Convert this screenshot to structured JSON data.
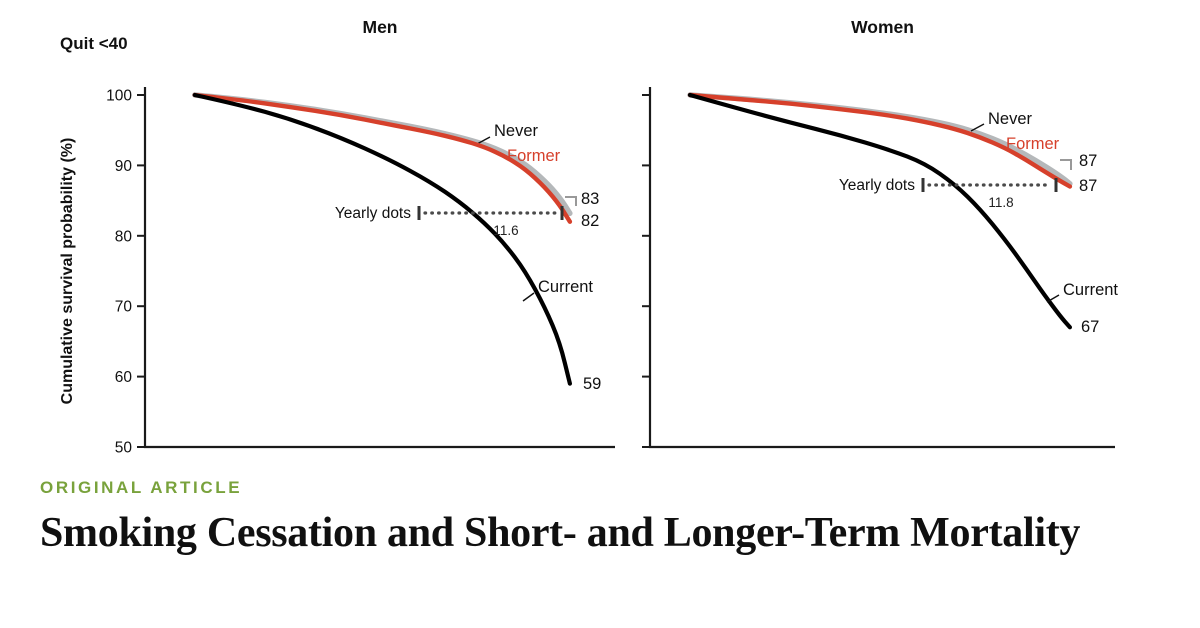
{
  "chart_header": {
    "quit_label": "Quit <40"
  },
  "chart_data": [
    {
      "type": "line",
      "title": "Men",
      "ylabel": "Cumulative survival probability (%)",
      "ylim": [
        50,
        100
      ],
      "yticks": [
        100,
        90,
        80,
        70,
        60,
        50
      ],
      "x_axis": "follow-up time (unlabeled, yearly dots)",
      "legend_position": "inline-labels",
      "series": [
        {
          "name": "Never",
          "color": "#b5b8ba",
          "end_value": 83,
          "points": [
            [
              0.106,
              100
            ],
            [
              0.202,
              99.4
            ],
            [
              0.309,
              98.5
            ],
            [
              0.415,
              97.4
            ],
            [
              0.521,
              96.1
            ],
            [
              0.606,
              95.0
            ],
            [
              0.67,
              94.0
            ],
            [
              0.723,
              93.0
            ],
            [
              0.766,
              91.8
            ],
            [
              0.809,
              90.2
            ],
            [
              0.851,
              87.8
            ],
            [
              0.883,
              85.4
            ],
            [
              0.904,
              83.2
            ]
          ]
        },
        {
          "name": "Former",
          "color": "#d6402b",
          "end_value": 82,
          "points": [
            [
              0.106,
              100
            ],
            [
              0.202,
              99.3
            ],
            [
              0.309,
              98.3
            ],
            [
              0.415,
              97.2
            ],
            [
              0.521,
              95.8
            ],
            [
              0.606,
              94.7
            ],
            [
              0.67,
              93.7
            ],
            [
              0.723,
              92.6
            ],
            [
              0.766,
              91.3
            ],
            [
              0.809,
              89.5
            ],
            [
              0.851,
              86.9
            ],
            [
              0.883,
              84.3
            ],
            [
              0.904,
              82.0
            ]
          ]
        },
        {
          "name": "Current",
          "color": "#000000",
          "end_value": 59,
          "points": [
            [
              0.106,
              100
            ],
            [
              0.202,
              98.6
            ],
            [
              0.309,
              96.6
            ],
            [
              0.415,
              94.0
            ],
            [
              0.521,
              90.8
            ],
            [
              0.606,
              87.7
            ],
            [
              0.67,
              84.8
            ],
            [
              0.723,
              81.8
            ],
            [
              0.766,
              78.8
            ],
            [
              0.809,
              75.0
            ],
            [
              0.851,
              69.8
            ],
            [
              0.883,
              64.8
            ],
            [
              0.904,
              59.0
            ]
          ]
        }
      ],
      "annotation": {
        "label": "Yearly dots",
        "gap_years": "11.6"
      }
    },
    {
      "type": "line",
      "title": "Women",
      "ylabel": "",
      "ylim": [
        50,
        100
      ],
      "yticks": [
        100,
        90,
        80,
        70,
        60,
        50
      ],
      "x_axis": "follow-up time (unlabeled, yearly dots)",
      "legend_position": "inline-labels",
      "series": [
        {
          "name": "Never",
          "color": "#b5b8ba",
          "end_value": 87,
          "points": [
            [
              0.086,
              100
            ],
            [
              0.194,
              99.5
            ],
            [
              0.301,
              98.9
            ],
            [
              0.409,
              98.2
            ],
            [
              0.516,
              97.3
            ],
            [
              0.591,
              96.5
            ],
            [
              0.656,
              95.6
            ],
            [
              0.71,
              94.5
            ],
            [
              0.763,
              93.1
            ],
            [
              0.806,
              91.6
            ],
            [
              0.849,
              89.9
            ],
            [
              0.882,
              88.5
            ],
            [
              0.903,
              87.4
            ]
          ]
        },
        {
          "name": "Former",
          "color": "#d6402b",
          "end_value": 87,
          "points": [
            [
              0.086,
              100
            ],
            [
              0.194,
              99.4
            ],
            [
              0.301,
              98.8
            ],
            [
              0.409,
              98.0
            ],
            [
              0.516,
              97.1
            ],
            [
              0.591,
              96.2
            ],
            [
              0.656,
              95.2
            ],
            [
              0.71,
              94.0
            ],
            [
              0.763,
              92.5
            ],
            [
              0.806,
              90.9
            ],
            [
              0.849,
              89.1
            ],
            [
              0.882,
              87.8
            ],
            [
              0.903,
              87.0
            ]
          ]
        },
        {
          "name": "Current",
          "color": "#000000",
          "end_value": 67,
          "points": [
            [
              0.086,
              100
            ],
            [
              0.194,
              98.0
            ],
            [
              0.301,
              96.1
            ],
            [
              0.409,
              94.3
            ],
            [
              0.516,
              92.2
            ],
            [
              0.591,
              90.3
            ],
            [
              0.656,
              87.3
            ],
            [
              0.71,
              83.8
            ],
            [
              0.763,
              79.5
            ],
            [
              0.806,
              75.6
            ],
            [
              0.849,
              71.5
            ],
            [
              0.882,
              68.6
            ],
            [
              0.903,
              67.0
            ]
          ]
        }
      ],
      "annotation": {
        "label": "Yearly dots",
        "gap_years": "11.8"
      }
    }
  ],
  "article": {
    "kicker": "ORIGINAL ARTICLE",
    "kicker_color": "#79a23c",
    "title": "Smoking Cessation and Short- and Longer-Term Mortality"
  }
}
